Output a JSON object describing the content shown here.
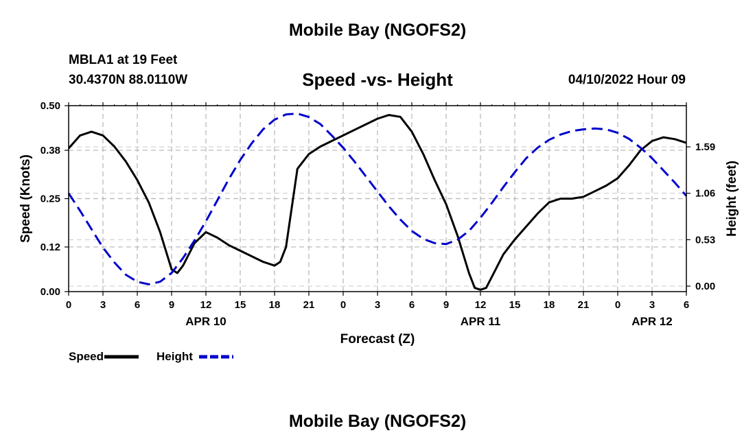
{
  "header": {
    "title": "Mobile Bay (NGOFS2)",
    "station": "MBLA1 at 19 Feet",
    "coords": "30.4370N  88.0110W",
    "subtitle": "Speed -vs- Height",
    "timestamp": "04/10/2022 Hour 09"
  },
  "footer": {
    "title": "Mobile Bay (NGOFS2)"
  },
  "chart_data": {
    "type": "line",
    "xlabel": "Forecast (Z)",
    "ylabel_left": "Speed (Knots)",
    "ylabel_right": "Height (feet)",
    "x_unit": "hours from 04/10/2022 00Z",
    "xlim": [
      0,
      54
    ],
    "ylim_left": [
      0,
      0.5
    ],
    "ylim_right": [
      -0.05,
      2.1
    ],
    "x_ticks": [
      0,
      3,
      6,
      9,
      12,
      15,
      18,
      21,
      24,
      27,
      30,
      33,
      36,
      39,
      42,
      45,
      48,
      51,
      54
    ],
    "x_tick_labels": [
      "0",
      "3",
      "6",
      "9",
      "12",
      "15",
      "18",
      "21",
      "0",
      "3",
      "6",
      "9",
      "12",
      "15",
      "18",
      "21",
      "0",
      "3",
      "6"
    ],
    "date_labels": [
      {
        "x": 12,
        "label": "APR 10"
      },
      {
        "x": 36,
        "label": "APR 11"
      },
      {
        "x": 51,
        "label": "APR 12"
      }
    ],
    "left_ticks": [
      0.0,
      0.12,
      0.25,
      0.38,
      0.5
    ],
    "left_tick_labels": [
      "0.00",
      "0.12",
      "0.25",
      "0.38",
      "0.50"
    ],
    "right_ticks": [
      0.0,
      0.53,
      1.06,
      1.59
    ],
    "right_tick_labels": [
      "0.00",
      "0.53",
      "1.06",
      "1.59"
    ],
    "grid": true,
    "legend_position": "bottom-left",
    "series": [
      {
        "name": "Speed",
        "axis": "left",
        "color": "#000000",
        "style": "solid",
        "x": [
          0,
          1,
          2,
          3,
          4,
          5,
          6,
          7,
          8,
          9,
          9.5,
          10,
          11,
          12,
          13,
          14,
          15,
          16,
          17,
          18,
          18.5,
          19,
          20,
          21,
          22,
          23,
          24,
          25,
          26,
          27,
          28,
          29,
          30,
          31,
          32,
          33,
          34,
          35,
          35.5,
          36,
          36.5,
          37,
          38,
          39,
          40,
          41,
          42,
          43,
          44,
          45,
          46,
          47,
          48,
          49,
          50,
          51,
          52,
          53,
          54
        ],
        "values": [
          0.385,
          0.42,
          0.43,
          0.42,
          0.39,
          0.35,
          0.3,
          0.24,
          0.16,
          0.06,
          0.05,
          0.07,
          0.13,
          0.16,
          0.145,
          0.125,
          0.11,
          0.095,
          0.08,
          0.07,
          0.08,
          0.12,
          0.33,
          0.37,
          0.39,
          0.405,
          0.42,
          0.435,
          0.45,
          0.465,
          0.475,
          0.47,
          0.43,
          0.37,
          0.3,
          0.235,
          0.15,
          0.05,
          0.01,
          0.005,
          0.01,
          0.04,
          0.1,
          0.14,
          0.175,
          0.21,
          0.24,
          0.25,
          0.25,
          0.255,
          0.27,
          0.285,
          0.305,
          0.34,
          0.38,
          0.405,
          0.415,
          0.41,
          0.4
        ]
      },
      {
        "name": "Height",
        "axis": "right",
        "color": "#0000cc",
        "style": "dashed",
        "x": [
          0,
          1,
          2,
          3,
          4,
          5,
          6,
          7,
          8,
          9,
          10,
          11,
          12,
          13,
          14,
          15,
          16,
          17,
          18,
          19,
          20,
          21,
          22,
          23,
          24,
          25,
          26,
          27,
          28,
          29,
          30,
          31,
          32,
          33,
          34,
          35,
          36,
          37,
          38,
          39,
          40,
          41,
          42,
          43,
          44,
          45,
          46,
          47,
          48,
          49,
          50,
          51,
          52,
          53,
          54
        ],
        "values": [
          1.06,
          0.86,
          0.65,
          0.44,
          0.27,
          0.13,
          0.05,
          0.02,
          0.05,
          0.15,
          0.32,
          0.52,
          0.74,
          0.98,
          1.22,
          1.44,
          1.63,
          1.79,
          1.9,
          1.96,
          1.97,
          1.93,
          1.85,
          1.72,
          1.58,
          1.42,
          1.25,
          1.08,
          0.91,
          0.76,
          0.63,
          0.54,
          0.49,
          0.48,
          0.53,
          0.63,
          0.78,
          0.95,
          1.13,
          1.3,
          1.46,
          1.58,
          1.67,
          1.73,
          1.77,
          1.79,
          1.8,
          1.79,
          1.75,
          1.68,
          1.58,
          1.46,
          1.32,
          1.18,
          1.03
        ]
      }
    ]
  }
}
